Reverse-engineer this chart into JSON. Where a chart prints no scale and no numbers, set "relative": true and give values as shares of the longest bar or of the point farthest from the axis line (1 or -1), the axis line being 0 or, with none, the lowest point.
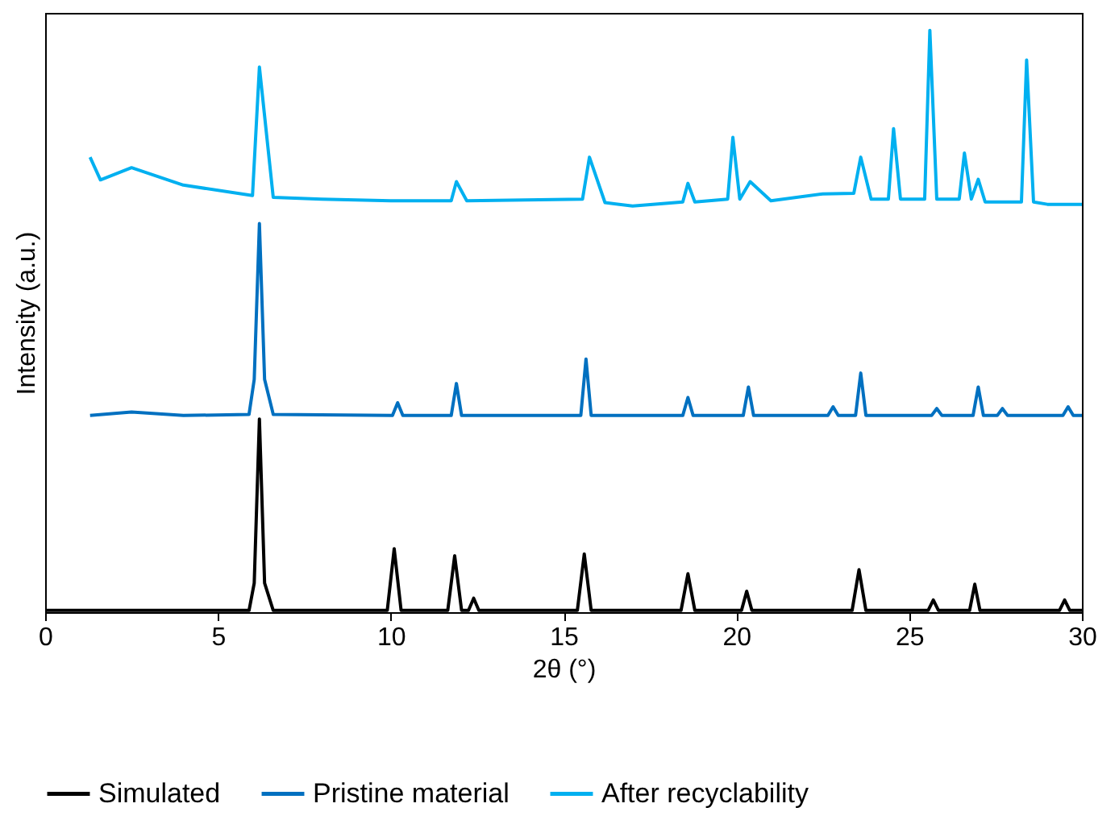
{
  "chart_data": {
    "type": "line",
    "relative": true,
    "xlabel": "2θ (°)",
    "ylabel": "Intensity (a.u.)",
    "xlim": [
      0,
      30
    ],
    "xticks": [
      0,
      5,
      10,
      15,
      20,
      25,
      30
    ],
    "grid": false,
    "legend": "bottom",
    "marker": "none",
    "line_style": "solid",
    "series": [
      {
        "name": "Simulated",
        "color": "#000000",
        "x": [
          0,
          5.9,
          6.05,
          6.2,
          6.35,
          6.6,
          9.9,
          10.1,
          10.3,
          11.65,
          11.85,
          12.05,
          12.25,
          12.4,
          12.55,
          15.4,
          15.6,
          15.8,
          18.4,
          18.6,
          18.8,
          20.15,
          20.3,
          20.45,
          23.35,
          23.55,
          23.75,
          25.55,
          25.7,
          25.85,
          26.75,
          26.9,
          27.05,
          29.35,
          29.5,
          29.65,
          30
        ],
        "values": [
          0.003,
          0.003,
          0.05,
          0.332,
          0.05,
          0.003,
          0.003,
          0.109,
          0.003,
          0.003,
          0.097,
          0.003,
          0.003,
          0.024,
          0.003,
          0.003,
          0.1,
          0.003,
          0.003,
          0.066,
          0.003,
          0.003,
          0.036,
          0.003,
          0.003,
          0.073,
          0.003,
          0.003,
          0.021,
          0.003,
          0.003,
          0.048,
          0.003,
          0.003,
          0.021,
          0.003,
          0.003
        ]
      },
      {
        "name": "Pristine material",
        "color": "#0070c0",
        "x": [
          1.3,
          2.5,
          4,
          5.9,
          6.05,
          6.2,
          6.35,
          6.6,
          10.05,
          10.2,
          10.35,
          11.75,
          11.9,
          12.05,
          15.5,
          15.65,
          15.8,
          18.45,
          18.6,
          18.75,
          20.2,
          20.35,
          20.5,
          22.65,
          22.8,
          22.95,
          23.45,
          23.6,
          23.75,
          25.65,
          25.8,
          25.95,
          26.85,
          27.0,
          27.15,
          27.55,
          27.7,
          27.85,
          29.45,
          29.6,
          29.75,
          30
        ],
        "values": [
          0.338,
          0.344,
          0.338,
          0.34,
          0.4,
          0.668,
          0.4,
          0.34,
          0.338,
          0.36,
          0.338,
          0.338,
          0.393,
          0.338,
          0.338,
          0.435,
          0.338,
          0.338,
          0.369,
          0.338,
          0.338,
          0.387,
          0.338,
          0.338,
          0.353,
          0.338,
          0.338,
          0.411,
          0.338,
          0.338,
          0.35,
          0.338,
          0.338,
          0.387,
          0.338,
          0.338,
          0.35,
          0.338,
          0.338,
          0.353,
          0.338,
          0.338
        ]
      },
      {
        "name": "After recyclability",
        "color": "#00b0f0",
        "x": [
          1.3,
          1.6,
          2.5,
          4,
          6.0,
          6.2,
          6.6,
          8,
          10,
          11.75,
          11.9,
          12.2,
          15.55,
          15.75,
          16.2,
          17,
          18.45,
          18.6,
          18.8,
          19.75,
          19.9,
          20.1,
          20.4,
          21,
          22.5,
          23.4,
          23.6,
          23.9,
          24.4,
          24.55,
          24.75,
          25.45,
          25.6,
          25.8,
          26.45,
          26.6,
          26.8,
          27.0,
          27.2,
          28.25,
          28.4,
          28.6,
          29,
          30
        ],
        "values": [
          0.782,
          0.743,
          0.764,
          0.734,
          0.716,
          0.937,
          0.713,
          0.71,
          0.707,
          0.707,
          0.74,
          0.707,
          0.71,
          0.782,
          0.704,
          0.698,
          0.705,
          0.737,
          0.705,
          0.71,
          0.816,
          0.71,
          0.74,
          0.707,
          0.719,
          0.72,
          0.782,
          0.71,
          0.71,
          0.831,
          0.71,
          0.71,
          1,
          0.71,
          0.71,
          0.789,
          0.71,
          0.744,
          0.705,
          0.705,
          0.949,
          0.705,
          0.701,
          0.701
        ]
      }
    ]
  }
}
